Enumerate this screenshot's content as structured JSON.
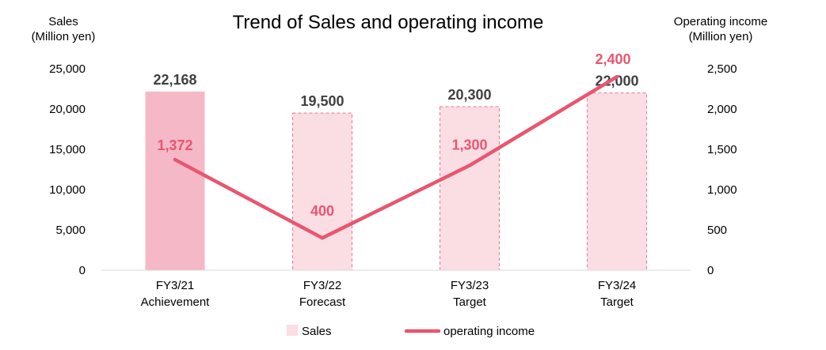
{
  "chart_data": {
    "type": "bar",
    "title": "Trend of Sales and operating income",
    "y_left_label": [
      "Sales",
      "(Million yen)"
    ],
    "y_right_label": [
      "Operating income",
      "(Million yen)"
    ],
    "categories": [
      [
        "FY3/21",
        "Achievement"
      ],
      [
        "FY3/22",
        "Forecast"
      ],
      [
        "FY3/23",
        "Target"
      ],
      [
        "FY3/24",
        "Target"
      ]
    ],
    "ylim_left": [
      0,
      25000
    ],
    "ylim_right": [
      0,
      2500
    ],
    "y_left_ticks": [
      0,
      5000,
      10000,
      15000,
      20000,
      25000
    ],
    "y_right_ticks": [
      0,
      500,
      1000,
      1500,
      2000,
      2500
    ],
    "y_left_tick_labels": [
      "0",
      "5,000",
      "10,000",
      "15,000",
      "20,000",
      "25,000"
    ],
    "y_right_tick_labels": [
      "0",
      "500",
      "1,000",
      "1,500",
      "2,000",
      "2,500"
    ],
    "grid": false,
    "legend_placement": "bottom-center",
    "series": [
      {
        "name": "Sales",
        "type": "bar",
        "axis": "left",
        "values": [
          22168,
          19500,
          20300,
          22000
        ],
        "labels": [
          "22,168",
          "19,500",
          "20,300",
          "22,000"
        ],
        "styles": [
          "solid",
          "dashed",
          "dashed",
          "dashed"
        ]
      },
      {
        "name": "operating income",
        "type": "line",
        "axis": "right",
        "values": [
          1372,
          400,
          1300,
          2400
        ],
        "labels": [
          "1,372",
          "400",
          "1,300",
          "2,400"
        ]
      }
    ],
    "colors": {
      "bar_solid_fill": "#f5b8c6",
      "bar_dashed_fill": "#fbdde4",
      "bar_dashed_stroke": "#e8798f",
      "line": "#e8566f",
      "line_label": "#e8566f",
      "bar_label": "#404040",
      "axis_text": "#000000",
      "axis_line": "#d9d9d9"
    }
  }
}
